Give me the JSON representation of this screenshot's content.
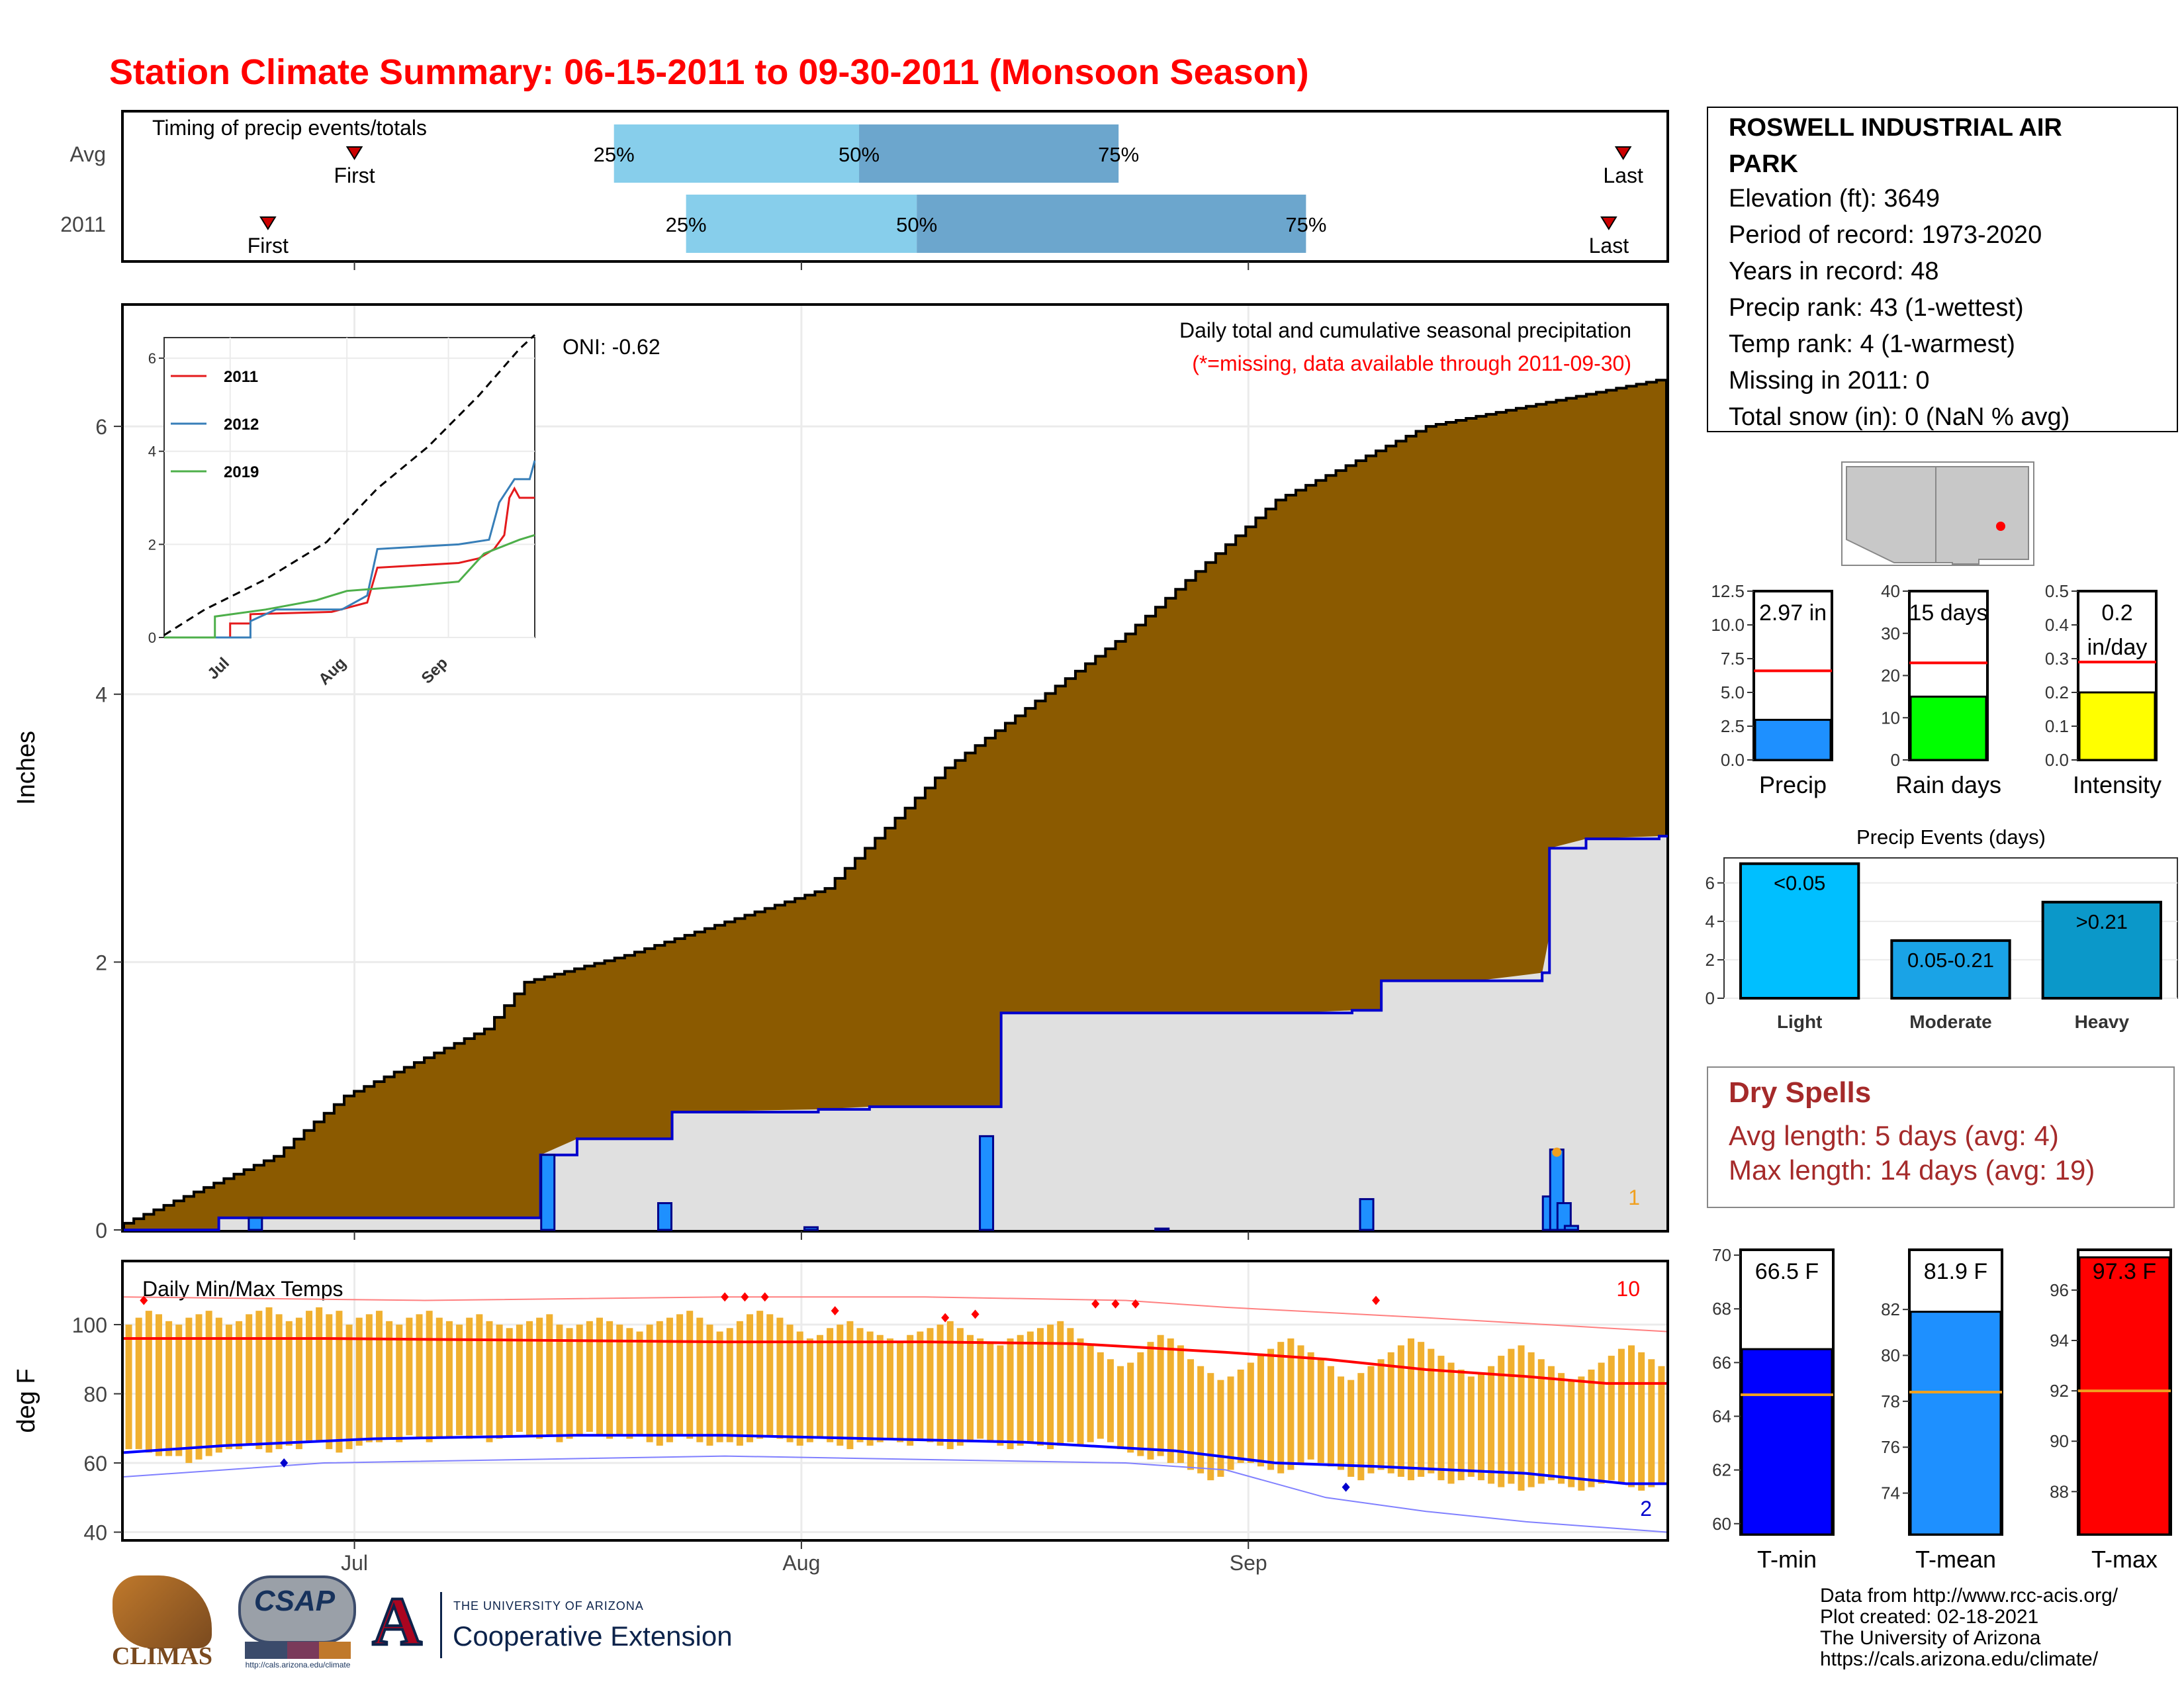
{
  "title": "Station Climate Summary: 06-15-2011 to 09-30-2011 (Monsoon Season)",
  "timing": {
    "title": "Timing of precip events/totals",
    "rows": [
      {
        "label": "Avg",
        "first": "2011-07-01",
        "p25": "2011-07-19",
        "p50": "2011-08-05",
        "p75": "2011-08-23",
        "last": "2011-09-27"
      },
      {
        "label": "2011",
        "first": "2011-06-25",
        "p25": "2011-07-24",
        "p50": "2011-08-09",
        "p75": "2011-09-05",
        "last": "2011-09-26"
      }
    ],
    "first_label": "First",
    "last_label": "Last",
    "pct_labels": [
      "25%",
      "50%",
      "75%"
    ]
  },
  "station": {
    "name": "ROSWELL INDUSTRIAL AIR PARK",
    "lines": [
      "Elevation (ft): 3649",
      "Period of record: 1973-2020",
      "Years in record: 48",
      "Precip rank: 43 (1-wettest)",
      "Temp rank: 4 (1-warmest)",
      "Missing in 2011: 0",
      "Total snow (in): 0 (NaN % avg)"
    ]
  },
  "chart_data": [
    {
      "type": "area",
      "name": "precip",
      "title": "Daily total and cumulative seasonal precipitation",
      "subtitle": "(*=missing, data available through 2011-09-30)",
      "oni": "ONI: -0.62",
      "ylabel": "Inches",
      "ylim": [
        0,
        6.9
      ],
      "yticks": [
        0,
        2,
        4,
        6
      ],
      "x_start": "2011-06-15",
      "x_end": "2011-09-30",
      "xticks": [
        "Jul",
        "Aug",
        "Sep"
      ],
      "corner_note": "1",
      "avg_cumulative_ends": 6.36,
      "avg_cumulative_checkpoints": [
        [
          0,
          0.05
        ],
        [
          15,
          0.55
        ],
        [
          22,
          1.0
        ],
        [
          36,
          1.5
        ],
        [
          40,
          1.85
        ],
        [
          50,
          2.05
        ],
        [
          70,
          2.55
        ],
        [
          82,
          3.45
        ],
        [
          100,
          4.45
        ],
        [
          115,
          5.45
        ],
        [
          130,
          6.0
        ],
        [
          154,
          6.36
        ]
      ],
      "cumulative_2011": [
        [
          0,
          0
        ],
        [
          13,
          0
        ],
        [
          13,
          0.09
        ],
        [
          57,
          0.09
        ],
        [
          57,
          0.56
        ],
        [
          62,
          0.68
        ],
        [
          75,
          0.68
        ],
        [
          75,
          0.88
        ],
        [
          95,
          0.9
        ],
        [
          102,
          0.92
        ],
        [
          120,
          0.92
        ],
        [
          120,
          1.62
        ],
        [
          160,
          1.62
        ],
        [
          168,
          1.64
        ],
        [
          172,
          1.64
        ],
        [
          172,
          1.86
        ],
        [
          185,
          1.86
        ],
        [
          194,
          1.92
        ],
        [
          195,
          2.2
        ],
        [
          195,
          2.85
        ],
        [
          200,
          2.92
        ],
        [
          210,
          2.94
        ],
        [
          211,
          2.95
        ]
      ],
      "daily_2011": [
        [
          18,
          0.09
        ],
        [
          58,
          0.56
        ],
        [
          74,
          0.2
        ],
        [
          94,
          0.02
        ],
        [
          118,
          0.7
        ],
        [
          142,
          0.01
        ],
        [
          170,
          0.23
        ],
        [
          195,
          0.25
        ],
        [
          196,
          0.6
        ],
        [
          197,
          0.2
        ],
        [
          198,
          0.03
        ]
      ]
    },
    {
      "type": "line",
      "name": "inset",
      "yticks": [
        0,
        2,
        4,
        6
      ],
      "xticks": [
        "Jul",
        "Aug",
        "Sep"
      ],
      "series": [
        {
          "name": "2011",
          "color": "#e41a1c",
          "values": [
            [
              0,
              0
            ],
            [
              13,
              0
            ],
            [
              13,
              0.3
            ],
            [
              17,
              0.3
            ],
            [
              17,
              0.5
            ],
            [
              33,
              0.55
            ],
            [
              40,
              0.75
            ],
            [
              42,
              1.5
            ],
            [
              58,
              1.6
            ],
            [
              62,
              1.7
            ],
            [
              65,
              1.9
            ],
            [
              67,
              2.2
            ],
            [
              68,
              3.0
            ],
            [
              69,
              3.2
            ],
            [
              70,
              3.0
            ],
            [
              73,
              3.0
            ]
          ]
        },
        {
          "name": "2012",
          "color": "#377eb8",
          "values": [
            [
              0,
              0
            ],
            [
              17,
              0
            ],
            [
              17,
              0.35
            ],
            [
              22,
              0.6
            ],
            [
              35,
              0.6
            ],
            [
              40,
              0.9
            ],
            [
              42,
              1.9
            ],
            [
              58,
              2.0
            ],
            [
              64,
              2.1
            ],
            [
              66,
              2.9
            ],
            [
              69,
              3.4
            ],
            [
              72,
              3.4
            ],
            [
              73,
              3.8
            ]
          ]
        },
        {
          "name": "2019",
          "color": "#4daf4a",
          "values": [
            [
              0,
              0
            ],
            [
              10,
              0
            ],
            [
              10,
              0.45
            ],
            [
              20,
              0.6
            ],
            [
              30,
              0.8
            ],
            [
              36,
              1.0
            ],
            [
              48,
              1.1
            ],
            [
              58,
              1.2
            ],
            [
              63,
              1.8
            ],
            [
              70,
              2.1
            ],
            [
              73,
              2.2
            ]
          ]
        }
      ],
      "avg_line": [
        [
          0,
          0.05
        ],
        [
          8,
          0.6
        ],
        [
          20,
          1.25
        ],
        [
          32,
          2.05
        ],
        [
          42,
          3.2
        ],
        [
          52,
          4.1
        ],
        [
          62,
          5.2
        ],
        [
          70,
          6.2
        ],
        [
          73,
          6.5
        ]
      ]
    },
    {
      "type": "bar",
      "name": "precip_stats",
      "panels": [
        {
          "category": "Precip",
          "value": 2.97,
          "avg": 6.6,
          "label": "2.97 in",
          "ylim": [
            0,
            12.5
          ],
          "yticks": [
            "0.0",
            "2.5",
            "5.0",
            "7.5",
            "10.0",
            "12.5"
          ],
          "color": "#1e90ff"
        },
        {
          "category": "Rain days",
          "value": 15,
          "avg": 23,
          "label": "15 days",
          "ylim": [
            0,
            40
          ],
          "yticks": [
            "0",
            "10",
            "20",
            "30",
            "40"
          ],
          "color": "#00ff00"
        },
        {
          "category": "Intensity",
          "value": 0.2,
          "avg": 0.29,
          "label": "0.2 in/day",
          "ylim": [
            0,
            0.5
          ],
          "yticks": [
            "0.0",
            "0.1",
            "0.2",
            "0.3",
            "0.4",
            "0.5"
          ],
          "color": "#ffff00"
        }
      ]
    },
    {
      "type": "bar",
      "name": "events",
      "title": "Precip Events (days)",
      "categories": [
        "Light",
        "Moderate",
        "Heavy"
      ],
      "values": [
        7,
        3,
        5
      ],
      "bar_labels": [
        "<0.05",
        "0.05-0.21",
        ">0.21"
      ],
      "colors": [
        "#00bfff",
        "#1aa3e6",
        "#0b98c9"
      ],
      "ylim": [
        0,
        7.3
      ],
      "yticks": [
        0,
        2,
        4,
        6
      ]
    },
    {
      "type": "bar",
      "name": "temp_stats",
      "panels": [
        {
          "category": "T-min",
          "value": 66.5,
          "avg": 64.8,
          "label": "66.5 F",
          "ylim": [
            59.6,
            70.2
          ],
          "yticks": [
            60,
            62,
            64,
            66,
            68,
            70
          ],
          "color": "#0000ff"
        },
        {
          "category": "T-mean",
          "value": 81.9,
          "avg": 78.4,
          "label": "81.9 F",
          "ylim": [
            72.2,
            84.6
          ],
          "yticks": [
            74,
            76,
            78,
            80,
            82
          ],
          "color": "#1e90ff"
        },
        {
          "category": "T-max",
          "value": 97.3,
          "avg": 92.0,
          "label": "97.3 F",
          "ylim": [
            86.3,
            97.6
          ],
          "yticks": [
            88,
            90,
            92,
            94,
            96
          ],
          "color": "#ff0000"
        }
      ]
    },
    {
      "type": "line",
      "name": "temps",
      "title": "Daily Min/Max Temps",
      "ylabel": "deg F",
      "ylim": [
        38,
        118
      ],
      "yticks": [
        40,
        60,
        80,
        100
      ],
      "xticks": [
        "Jul",
        "Aug",
        "Sep"
      ],
      "count_max": "10",
      "count_min": "2",
      "avg_max": [
        [
          0,
          96
        ],
        [
          20,
          96
        ],
        [
          40,
          95.5
        ],
        [
          60,
          95
        ],
        [
          80,
          95
        ],
        [
          95,
          94.5
        ],
        [
          110,
          92
        ],
        [
          120,
          90
        ],
        [
          130,
          87
        ],
        [
          140,
          85
        ],
        [
          148,
          83
        ],
        [
          154,
          83
        ]
      ],
      "avg_min": [
        [
          0,
          63
        ],
        [
          10,
          65
        ],
        [
          25,
          67
        ],
        [
          45,
          68
        ],
        [
          60,
          68
        ],
        [
          75,
          67
        ],
        [
          90,
          66
        ],
        [
          105,
          63.5
        ],
        [
          115,
          60
        ],
        [
          125,
          59
        ],
        [
          140,
          57
        ],
        [
          150,
          54
        ],
        [
          154,
          54
        ]
      ],
      "record_max": [
        [
          0,
          108
        ],
        [
          30,
          107
        ],
        [
          60,
          108
        ],
        [
          80,
          108
        ],
        [
          100,
          107
        ],
        [
          110,
          105
        ],
        [
          130,
          102
        ],
        [
          154,
          98
        ]
      ],
      "record_min": [
        [
          0,
          56
        ],
        [
          20,
          60
        ],
        [
          40,
          61
        ],
        [
          60,
          62
        ],
        [
          80,
          61
        ],
        [
          100,
          60
        ],
        [
          110,
          58
        ],
        [
          120,
          50
        ],
        [
          130,
          46
        ],
        [
          140,
          43
        ],
        [
          154,
          40
        ]
      ],
      "daily_min": [
        64,
        64,
        63,
        62,
        62,
        62,
        60,
        61,
        62,
        63,
        64,
        64,
        65,
        64,
        63,
        64,
        65,
        64,
        66,
        66,
        64,
        63,
        64,
        65,
        66,
        66,
        67,
        66,
        68,
        67,
        66,
        67,
        67,
        68,
        67,
        68,
        66,
        67,
        68,
        69,
        68,
        67,
        68,
        66,
        67,
        68,
        69,
        68,
        67,
        68,
        67,
        68,
        66,
        65,
        66,
        68,
        67,
        66,
        65,
        66,
        66,
        65,
        66,
        67,
        68,
        67,
        66,
        65,
        66,
        67,
        66,
        65,
        64,
        66,
        65,
        66,
        67,
        66,
        65,
        67,
        66,
        65,
        64,
        65,
        66,
        67,
        66,
        65,
        64,
        65,
        66,
        65,
        64,
        65,
        66,
        65,
        66,
        67,
        66,
        64,
        63,
        62,
        61,
        62,
        60,
        60,
        58,
        57,
        55,
        56,
        58,
        60,
        60,
        59,
        58,
        57,
        58,
        60,
        61,
        60,
        59,
        58,
        56,
        55,
        57,
        58,
        57,
        56,
        55,
        56,
        57,
        55,
        54,
        55,
        56,
        55,
        54,
        53,
        54,
        52,
        53,
        54,
        55,
        54,
        53,
        52,
        53,
        54,
        55,
        54,
        53,
        52,
        53,
        54
      ],
      "daily_max": [
        100,
        102,
        104,
        103,
        101,
        100,
        102,
        103,
        104,
        102,
        100,
        101,
        103,
        104,
        105,
        103,
        101,
        102,
        104,
        105,
        103,
        104,
        100,
        102,
        103,
        104,
        101,
        100,
        102,
        103,
        104,
        102,
        101,
        100,
        102,
        103,
        101,
        100,
        99,
        100,
        101,
        102,
        103,
        100,
        99,
        100,
        101,
        102,
        101,
        100,
        99,
        98,
        100,
        101,
        102,
        103,
        104,
        102,
        100,
        98,
        99,
        101,
        103,
        104,
        103,
        102,
        100,
        98,
        96,
        97,
        99,
        100,
        101,
        99,
        98,
        97,
        96,
        95,
        97,
        98,
        99,
        100,
        101,
        99,
        97,
        96,
        95,
        94,
        96,
        97,
        98,
        99,
        100,
        101,
        99,
        96,
        94,
        92,
        90,
        88,
        89,
        92,
        95,
        97,
        96,
        94,
        90,
        88,
        86,
        84,
        85,
        87,
        89,
        91,
        93,
        95,
        96,
        94,
        92,
        90,
        88,
        85,
        84,
        86,
        88,
        90,
        92,
        94,
        96,
        95,
        93,
        91,
        89,
        87,
        85,
        86,
        88,
        91,
        93,
        94,
        92,
        90,
        88,
        86,
        84,
        85,
        87,
        89,
        91,
        93,
        94,
        92,
        90,
        88
      ]
    }
  ],
  "dry_spells": {
    "title": "Dry Spells",
    "avg_length": "Avg length: 5 days (avg: 4)",
    "max_length": "Max length: 14 days (avg: 19)"
  },
  "credits": [
    "Data from http://www.rcc-acis.org/",
    "Plot created: 02-18-2021",
    "The University of Arizona",
    "https://cals.arizona.edu/climate/"
  ],
  "logos": {
    "climas": "CLIMAS",
    "csap": "CSAP",
    "csap_url": "http://cals.arizona.edu/climate",
    "ua_small": "THE UNIVERSITY OF ARIZONA",
    "ua_big": "Cooperative Extension",
    "ua_letter": "A"
  },
  "colors": {
    "title_red": "#ff0000",
    "avg_area": "#8b5a00",
    "cum_fill": "#e0e0e0",
    "cum_line": "#0000cd",
    "daily_bar": "#1e90ff",
    "timing_light": "#87ceeb",
    "timing_dark": "#6ca6cd",
    "temp_bar": "#f0b030",
    "dry_red": "#a52a2a"
  }
}
